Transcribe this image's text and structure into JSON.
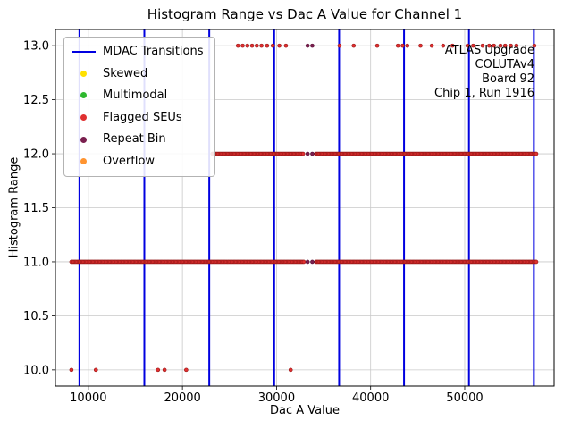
{
  "chart_data": {
    "type": "scatter",
    "title": "Histogram Range vs Dac A Value for Channel 1",
    "xlabel": "Dac A Value",
    "ylabel": "Histogram Range",
    "xlim": [
      6500,
      59500
    ],
    "ylim": [
      9.85,
      13.15
    ],
    "xticks": [
      10000,
      20000,
      30000,
      40000,
      50000
    ],
    "xtick_labels": [
      "10000",
      "20000",
      "30000",
      "40000",
      "50000"
    ],
    "yticks": [
      10,
      10.5,
      11,
      11.5,
      12,
      12.5,
      13
    ],
    "ytick_labels": [
      "10.0",
      "10.5",
      "11.0",
      "11.5",
      "12.0",
      "12.5",
      "13.0"
    ],
    "grid": true,
    "legend_position": "upper left",
    "colors": {
      "background": "#ffffff",
      "grid": "#c9c9c9",
      "frame": "#000000",
      "mdac_line": "#0000e0"
    },
    "mdac_transitions": [
      9050,
      15950,
      22850,
      29750,
      36650,
      43550,
      50450,
      57350
    ],
    "legend": [
      {
        "label": "MDAC Transitions",
        "marker": "line",
        "color": "#0000e0"
      },
      {
        "label": "Skewed",
        "marker": "dot",
        "color": "#ffe100"
      },
      {
        "label": "Multimodal",
        "marker": "dot",
        "color": "#2eb82e"
      },
      {
        "label": "Flagged SEUs",
        "marker": "dot",
        "color": "#e03030"
      },
      {
        "label": "Repeat Bin",
        "marker": "dot",
        "color": "#7a1f4e"
      },
      {
        "label": "Overflow",
        "marker": "dot",
        "color": "#ff9430"
      }
    ],
    "annotation": {
      "lines": [
        "ATLAS Upgrade",
        "COLUTAv4",
        "Board 92",
        "Chip 1, Run 1916"
      ]
    },
    "series": [
      {
        "name": "Flagged SEUs",
        "color": "#e03030",
        "edge_color": "#8f1414",
        "bands": [
          {
            "y": 11,
            "x_start": 8200,
            "x_end": 32900,
            "step": 130
          },
          {
            "y": 11,
            "x_start": 34200,
            "x_end": 57700,
            "step": 130
          },
          {
            "y": 12,
            "x_start": 23200,
            "x_end": 32900,
            "step": 130
          },
          {
            "y": 12,
            "x_start": 34200,
            "x_end": 57700,
            "step": 130
          }
        ],
        "points": [
          [
            8200,
            10
          ],
          [
            10800,
            10
          ],
          [
            17400,
            10
          ],
          [
            18100,
            10
          ],
          [
            20400,
            10
          ],
          [
            31500,
            10
          ],
          [
            25900,
            13
          ],
          [
            26400,
            13
          ],
          [
            26900,
            13
          ],
          [
            27400,
            13
          ],
          [
            27900,
            13
          ],
          [
            28400,
            13
          ],
          [
            29000,
            13
          ],
          [
            29600,
            13
          ],
          [
            30300,
            13
          ],
          [
            31000,
            13
          ],
          [
            36700,
            13
          ],
          [
            38200,
            13
          ],
          [
            40700,
            13
          ],
          [
            42900,
            13
          ],
          [
            43400,
            13
          ],
          [
            43900,
            13
          ],
          [
            45300,
            13
          ],
          [
            46500,
            13
          ],
          [
            47700,
            13
          ],
          [
            48700,
            13
          ],
          [
            50300,
            13
          ],
          [
            50900,
            13
          ],
          [
            51900,
            13
          ],
          [
            52600,
            13
          ],
          [
            53100,
            13
          ],
          [
            53800,
            13
          ],
          [
            54300,
            13
          ],
          [
            54900,
            13
          ],
          [
            55500,
            13
          ],
          [
            57400,
            13
          ]
        ]
      },
      {
        "name": "Repeat Bin",
        "color": "#7a1f4e",
        "edge_color": "#5a1038",
        "bands": [],
        "points": [
          [
            33300,
            11
          ],
          [
            33800,
            11
          ],
          [
            33300,
            12
          ],
          [
            33800,
            12
          ],
          [
            33300,
            13
          ],
          [
            33800,
            13
          ]
        ]
      },
      {
        "name": "Skewed",
        "color": "#ffe100",
        "edge_color": "#c9b300",
        "bands": [],
        "points": []
      },
      {
        "name": "Multimodal",
        "color": "#2eb82e",
        "edge_color": "#1d7a1d",
        "bands": [],
        "points": []
      },
      {
        "name": "Overflow",
        "color": "#ff9430",
        "edge_color": "#c76a12",
        "bands": [],
        "points": []
      }
    ]
  }
}
